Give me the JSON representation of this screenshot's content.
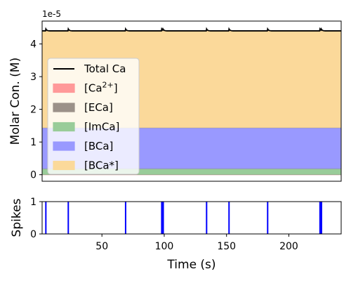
{
  "chart_data": [
    {
      "type": "area",
      "subtype": "stacked",
      "ylabel": "Molar Con. (M)",
      "y_offset_label": "1e-5",
      "ylim": [
        -0.2,
        4.7
      ],
      "yticks": [
        0,
        1,
        2,
        3,
        4
      ],
      "xlim": [
        2,
        242
      ],
      "grid": false,
      "legend_position": "upper-left",
      "layers": [
        {
          "name": "[Ca2+]",
          "label_text": "[Ca",
          "label_sup": "2+",
          "label_end": "]",
          "color": "#ff9999",
          "level": 0.002
        },
        {
          "name": "[ECa]",
          "label_text": "[ECa]",
          "color": "#9b9189",
          "level": 0.004
        },
        {
          "name": "[ImCa]",
          "label_text": "[ImCa]",
          "color": "#99cc99",
          "level": 0.18
        },
        {
          "name": "[BCa]",
          "label_text": "[BCa]",
          "color": "#9999ff",
          "level": 1.43
        },
        {
          "name": "[BCa*]",
          "label_text": "[BCa*]",
          "color": "#fbd99a",
          "level": 4.4
        }
      ],
      "series": [
        {
          "name": "Total Ca",
          "color": "#000000",
          "baseline": 4.4,
          "spike_peak": 4.46,
          "spike_times": [
            5,
            23,
            69,
            98,
            99,
            134,
            152,
            183,
            225,
            226
          ]
        }
      ]
    },
    {
      "type": "raster",
      "ylabel": "Spikes",
      "xlabel": "Time (s)",
      "xlim": [
        2,
        242
      ],
      "xticks": [
        50,
        100,
        150,
        200
      ],
      "ylim": [
        0,
        1
      ],
      "yticks": [
        0,
        1
      ],
      "color": "#0000ff",
      "spike_times": [
        5,
        23,
        69,
        98,
        98.6,
        99.2,
        134,
        152,
        183,
        225,
        225.6,
        226.2
      ]
    }
  ]
}
